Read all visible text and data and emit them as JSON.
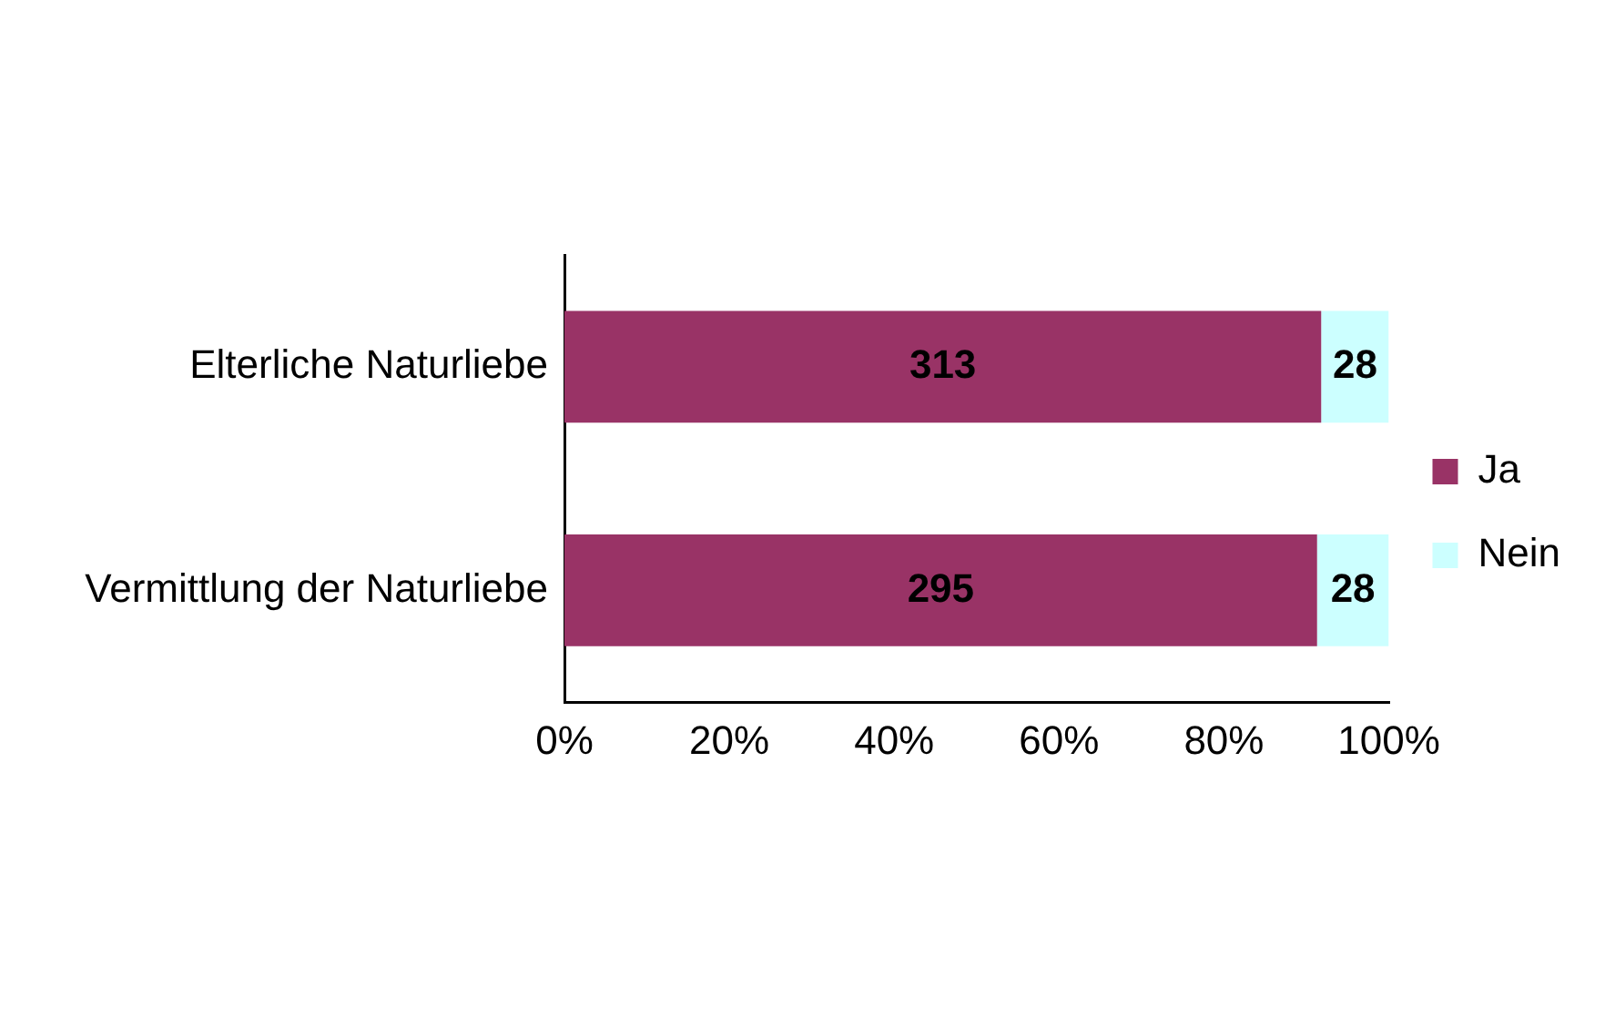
{
  "chart_data": {
    "type": "bar",
    "orientation": "horizontal",
    "stacked": true,
    "categories": [
      "Elterliche Naturliebe",
      "Vermittlung der Naturliebe"
    ],
    "series": [
      {
        "name": "Ja",
        "color": "#993366",
        "values": [
          91.8,
          91.3
        ]
      },
      {
        "name": "Nein",
        "color": "#ccffff",
        "values": [
          8.2,
          8.7
        ]
      }
    ],
    "annotations": [
      "313",
      "28",
      "295",
      "28"
    ],
    "xlim": [
      0,
      100
    ],
    "xticks": [
      {
        "value": 0,
        "label": "0%"
      },
      {
        "value": 20,
        "label": "20%"
      },
      {
        "value": 40,
        "label": "40%"
      },
      {
        "value": 60,
        "label": "60%"
      },
      {
        "value": 80,
        "label": "80%"
      },
      {
        "value": 100,
        "label": "100%"
      }
    ],
    "grid": false,
    "legend": "right"
  }
}
